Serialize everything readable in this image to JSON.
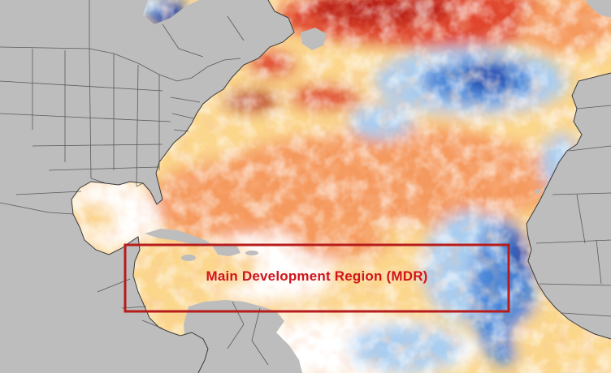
{
  "map": {
    "subject": "sea-surface-temperature-anomaly",
    "region_label": "Main Development Region (MDR)",
    "colors": {
      "land": "#bdbdbd",
      "border": "#3a3a3a",
      "warm_light": "#fbd78c",
      "warm": "#f59a5e",
      "warm_strong": "#e0462e",
      "warm_extreme": "#b81e12",
      "neutral": "#ffffff",
      "cool_light": "#a9cdf0",
      "cool": "#4a86d8",
      "cool_strong": "#1c3fa8",
      "box": "#b71c1c",
      "label": "#d0141c"
    }
  }
}
